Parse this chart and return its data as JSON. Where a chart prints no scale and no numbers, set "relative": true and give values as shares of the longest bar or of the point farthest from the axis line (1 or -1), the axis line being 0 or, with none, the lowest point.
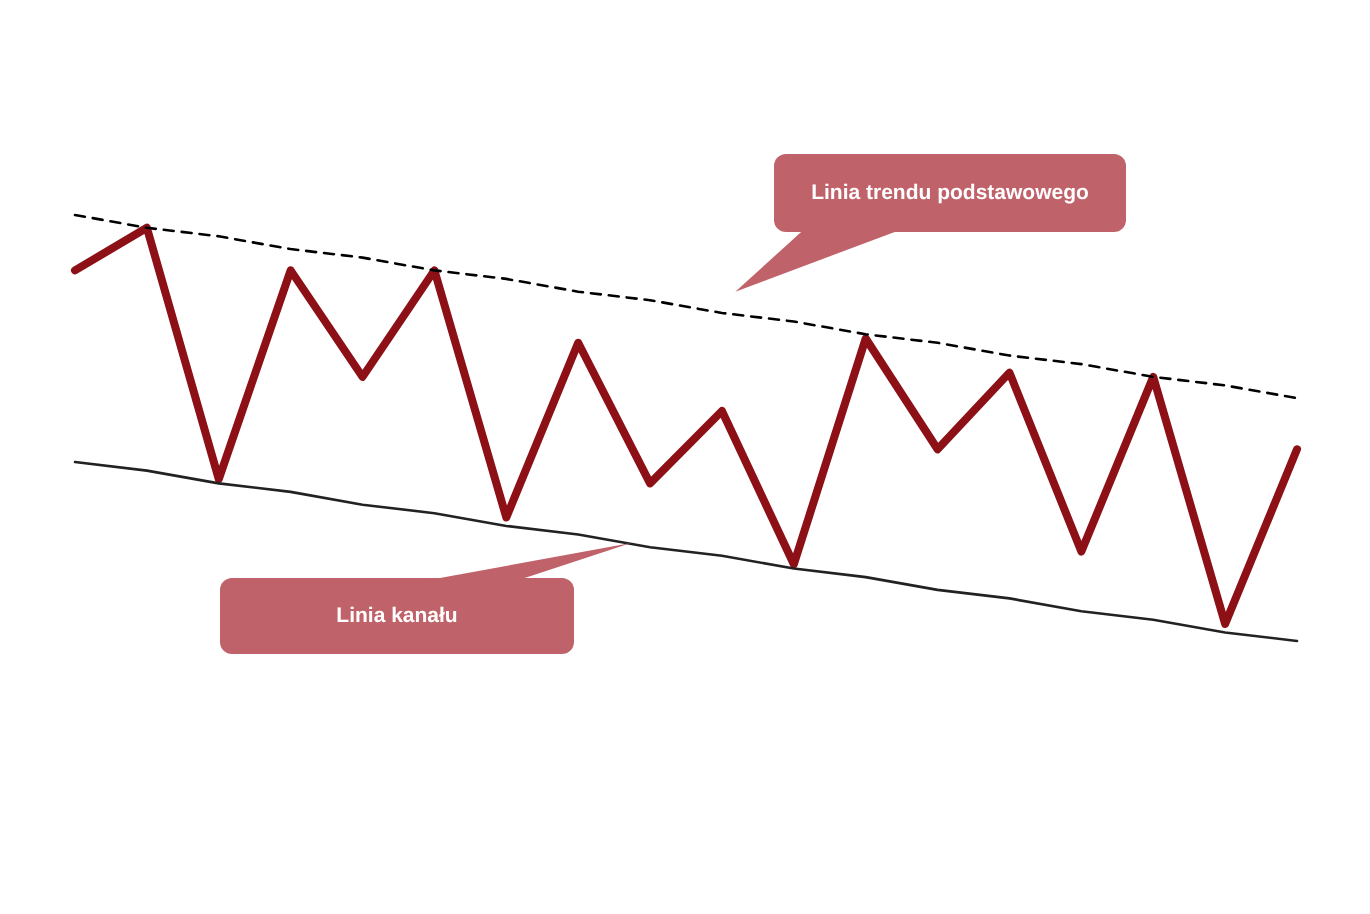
{
  "chart_data": {
    "type": "line",
    "relative": true,
    "categories": [
      null,
      null,
      null,
      null,
      null,
      null,
      null,
      null,
      null,
      null,
      null,
      null,
      null,
      null,
      null,
      null,
      null,
      null
    ],
    "series": [
      {
        "color": "#8c1016",
        "values": [
          0.87,
          0.97,
          0.38,
          0.87,
          0.62,
          0.87,
          0.29,
          0.7,
          0.37,
          0.54,
          0.18,
          0.71,
          0.45,
          0.63,
          0.21,
          0.62,
          0.04,
          0.45
        ]
      },
      {
        "type": "line",
        "color": "#000000",
        "line_style": "dashed",
        "values": [
          1,
          0.97,
          0.95,
          0.92,
          0.9,
          0.87,
          0.85,
          0.82,
          0.8,
          0.77,
          0.75,
          0.72,
          0.7,
          0.67,
          0.65,
          0.62,
          0.6,
          0.57
        ]
      },
      {
        "type": "line",
        "color": "#222222",
        "values": [
          0.42,
          0.4,
          0.37,
          0.35,
          0.32,
          0.3,
          0.27,
          0.25,
          0.22,
          0.2,
          0.17,
          0.15,
          0.12,
          0.1,
          0.07,
          0.05,
          0.02,
          0
        ]
      }
    ],
    "annotations": [
      "Linia trendu podstawowego",
      "Linia kanału"
    ]
  }
}
